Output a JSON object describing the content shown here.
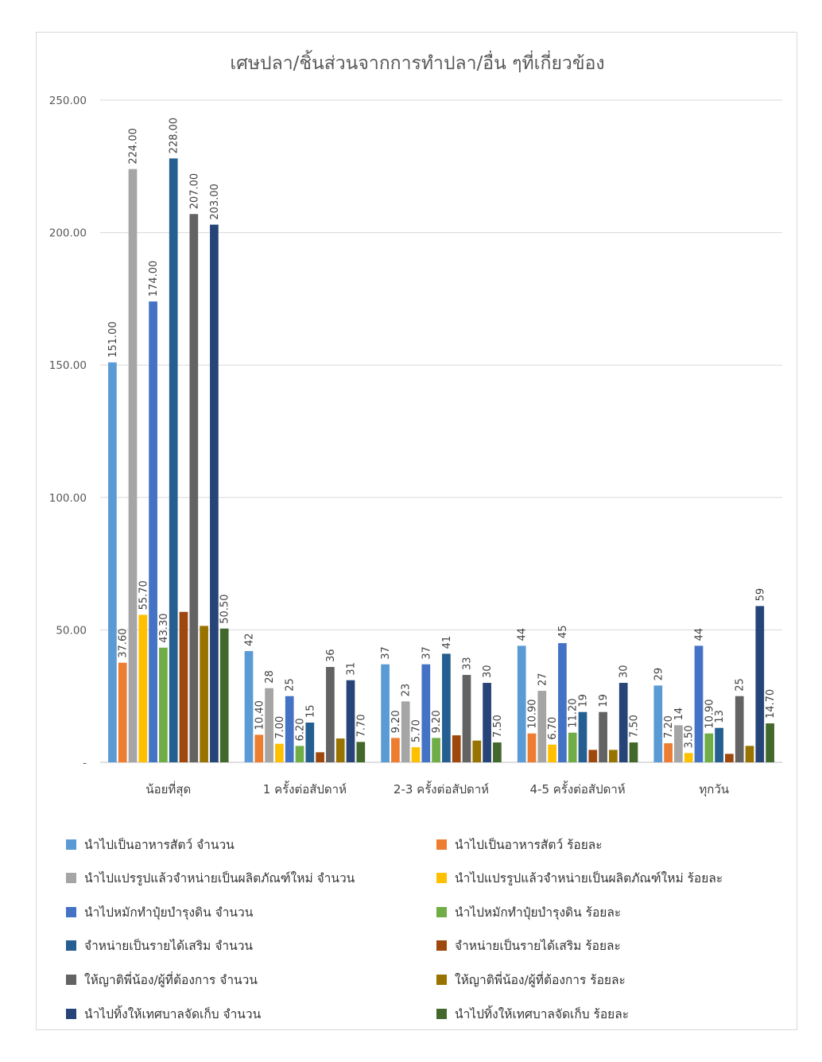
{
  "chart_data": {
    "type": "bar",
    "title": "เศษปลา/ชิ้นส่วนจากการทำปลา/อื่น ๆที่เกี่ยวข้อง",
    "xlabel": "",
    "ylabel": "",
    "ylim": [
      0,
      250
    ],
    "yticks": [
      "-",
      "50.00",
      "100.00",
      "150.00",
      "200.00",
      "250.00"
    ],
    "grid": true,
    "legend_position": "bottom",
    "categories": [
      "น้อยที่สุด",
      "1 ครั้งต่อสัปดาห์",
      "2-3 ครั้งต่อสัปดาห์",
      "4-5 ครั้งต่อสัปดาห์",
      "ทุกวัน"
    ],
    "series": [
      {
        "name": "นำไปเป็นอาหารสัตว์  จำนวน",
        "color": "#5B9BD5",
        "values": [
          151,
          42,
          37,
          44,
          29
        ],
        "labels": [
          "151.00",
          "42",
          "37",
          "44",
          "29"
        ]
      },
      {
        "name": "นำไปเป็นอาหารสัตว์  ร้อยละ",
        "color": "#ED7D31",
        "values": [
          37.6,
          10.4,
          9.2,
          10.9,
          7.2
        ],
        "labels": [
          "37.60",
          "10.40",
          "9.20",
          "10.90",
          "7.20"
        ]
      },
      {
        "name": "นำไปแปรรูปแล้วจำหน่ายเป็นผลิตภัณฑ์ใหม่ จำนวน",
        "color": "#A5A5A5",
        "values": [
          224,
          28,
          23,
          27,
          14
        ],
        "labels": [
          "224.00",
          "28",
          "23",
          "27",
          "14"
        ]
      },
      {
        "name": "นำไปแปรรูปแล้วจำหน่ายเป็นผลิตภัณฑ์ใหม่ ร้อยละ",
        "color": "#FFC000",
        "values": [
          55.7,
          7,
          5.7,
          6.7,
          3.5
        ],
        "labels": [
          "55.70",
          "7.00",
          "5.70",
          "6.70",
          "3.50"
        ]
      },
      {
        "name": "นำไปหมักทำปุ๋ยบำรุงดิน จำนวน",
        "color": "#4472C4",
        "values": [
          174,
          25,
          37,
          45,
          44
        ],
        "labels": [
          "174.00",
          "25",
          "37",
          "45",
          "44"
        ]
      },
      {
        "name": "นำไปหมักทำปุ๋ยบำรุงดิน ร้อยละ",
        "color": "#70AD47",
        "values": [
          43.3,
          6.2,
          9.2,
          11.2,
          10.9
        ],
        "labels": [
          "43.30",
          "6.20",
          "9.20",
          "11.20",
          "10.90"
        ]
      },
      {
        "name": "จำหน่ายเป็นรายได้เสริม จำนวน",
        "color": "#255E91",
        "values": [
          228,
          15,
          41,
          19,
          13
        ],
        "labels": [
          "228.00",
          "15",
          "41",
          "19",
          "13"
        ]
      },
      {
        "name": "จำหน่ายเป็นรายได้เสริม ร้อยละ",
        "color": "#9E480E",
        "values": [
          56.8,
          3.8,
          10.2,
          4.7,
          3.2
        ],
        "labels": [
          "",
          "",
          "",
          "",
          ""
        ]
      },
      {
        "name": "ให้ญาติพี่น้อง/ผู้ที่ต้องการ จำนวน",
        "color": "#636363",
        "values": [
          207,
          36,
          33,
          19,
          25
        ],
        "labels": [
          "207.00",
          "36",
          "33",
          "19",
          "25"
        ]
      },
      {
        "name": "ให้ญาติพี่น้อง/ผู้ที่ต้องการ ร้อยละ",
        "color": "#997300",
        "values": [
          51.5,
          9,
          8.2,
          4.7,
          6.2
        ],
        "labels": [
          "",
          "",
          "",
          "",
          ""
        ]
      },
      {
        "name": "นำไปทิ้งให้เทศบาลจัดเก็บ จำนวน",
        "color": "#264478",
        "values": [
          203,
          31,
          30,
          30,
          59
        ],
        "labels": [
          "203.00",
          "31",
          "30",
          "30",
          "59"
        ]
      },
      {
        "name": "นำไปทิ้งให้เทศบาลจัดเก็บ ร้อยละ",
        "color": "#43682B",
        "values": [
          50.5,
          7.7,
          7.5,
          7.5,
          14.7
        ],
        "labels": [
          "50.50",
          "7.70",
          "7.50",
          "7.50",
          "14.70"
        ]
      }
    ]
  }
}
